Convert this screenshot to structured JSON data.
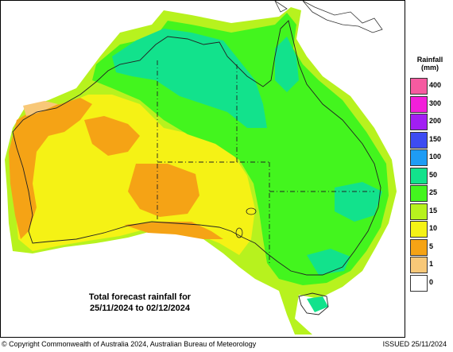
{
  "map": {
    "caption_line1": "Total forecast rainfall for",
    "caption_line2": "25/11/2024 to 02/12/2024"
  },
  "legend": {
    "title": "Rainfall",
    "unit": "(mm)",
    "items": [
      {
        "label": "400",
        "color": "#f55ba0"
      },
      {
        "label": "300",
        "color": "#f21fd9"
      },
      {
        "label": "200",
        "color": "#a21ff2"
      },
      {
        "label": "150",
        "color": "#3d4cf2"
      },
      {
        "label": "100",
        "color": "#1e9cf5"
      },
      {
        "label": "50",
        "color": "#12e28c"
      },
      {
        "label": "25",
        "color": "#43f51e"
      },
      {
        "label": "15",
        "color": "#b7f21e"
      },
      {
        "label": "10",
        "color": "#f5f215"
      },
      {
        "label": "5",
        "color": "#f5a315"
      },
      {
        "label": "1",
        "color": "#f8c878"
      },
      {
        "label": "0",
        "color": "#ffffff"
      }
    ]
  },
  "footer": {
    "copyright": "© Copyright Commonwealth of Australia 2024, Australian Bureau of Meteorology",
    "issued": "ISSUED 25/11/2024"
  }
}
